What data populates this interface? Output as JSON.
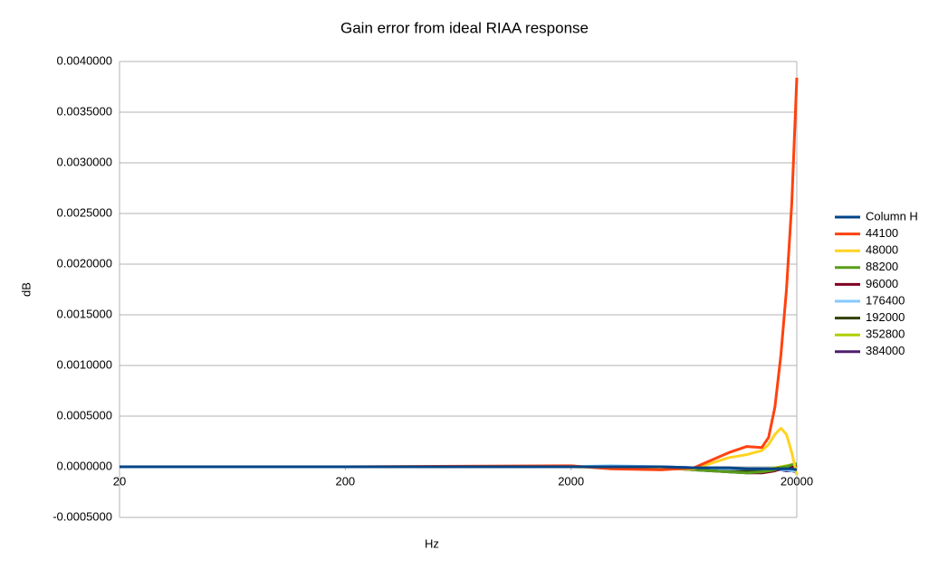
{
  "chart_data": {
    "type": "line",
    "title": "Gain error from ideal RIAA response",
    "x_label": "Hz",
    "y_label": "dB",
    "log_x": true,
    "grid": true,
    "legend": "right",
    "x": [
      20,
      200,
      2000,
      3000,
      5000,
      7000,
      10000,
      12000,
      14000,
      15000,
      16000,
      17000,
      18000,
      19000,
      20000
    ],
    "xlim": [
      20,
      20000
    ],
    "xticks": [
      20,
      200,
      2000,
      20000
    ],
    "ylim": [
      -0.0005,
      0.004
    ],
    "yticks": [
      {
        "value": -0.0005,
        "label": "-0.0005000"
      },
      {
        "value": 0,
        "label": "0.0000000"
      },
      {
        "value": 0.0005,
        "label": "0.0005000"
      },
      {
        "value": 0.001,
        "label": "0.0010000"
      },
      {
        "value": 0.0015,
        "label": "0.0015000"
      },
      {
        "value": 0.002,
        "label": "0.0020000"
      },
      {
        "value": 0.0025,
        "label": "0.0025000"
      },
      {
        "value": 0.003,
        "label": "0.0030000"
      },
      {
        "value": 0.0035,
        "label": "0.0035000"
      },
      {
        "value": 0.004,
        "label": "0.0040000"
      }
    ],
    "series": [
      {
        "name": "Column H",
        "color": "#004586",
        "values": [
          0,
          0,
          0,
          0,
          0,
          -1e-05,
          -1e-05,
          -2e-05,
          -2e-05,
          -2e-05,
          -2e-05,
          -2e-05,
          -2e-05,
          -2e-05,
          -3e-05
        ]
      },
      {
        "name": "44100",
        "color": "#ff420e",
        "values": [
          0,
          0,
          1e-05,
          -2e-05,
          -3e-05,
          -1e-05,
          0.00014,
          0.0002,
          0.00019,
          0.00029,
          0.00059,
          0.0011,
          0.00175,
          0.0026,
          0.00384
        ]
      },
      {
        "name": "48000",
        "color": "#ffd320",
        "values": [
          0,
          0,
          0,
          -1e-05,
          -2e-05,
          -2e-05,
          9e-05,
          0.00012,
          0.00016,
          0.00022,
          0.00032,
          0.00038,
          0.00032,
          0.00014,
          -8e-05
        ]
      },
      {
        "name": "88200",
        "color": "#579d1c",
        "values": [
          0,
          0,
          0,
          0,
          -1e-05,
          -3e-05,
          -5e-05,
          -6e-05,
          -5e-05,
          -4e-05,
          -3e-05,
          -1e-05,
          0,
          2e-05,
          3e-05
        ]
      },
      {
        "name": "96000",
        "color": "#7e0021",
        "values": [
          0,
          0,
          0,
          0,
          -1e-05,
          -3e-05,
          -5e-05,
          -6e-05,
          -6e-05,
          -5e-05,
          -4e-05,
          -2e-05,
          -1e-05,
          0,
          1e-05
        ]
      },
      {
        "name": "176400",
        "color": "#83caff",
        "values": [
          0,
          0,
          0,
          1e-05,
          0,
          -1e-05,
          -2e-05,
          -2e-05,
          -2e-05,
          -2e-05,
          -3e-05,
          -3e-05,
          -3e-05,
          -4e-05,
          -4e-05
        ]
      },
      {
        "name": "192000",
        "color": "#314004",
        "values": [
          0,
          0,
          0,
          0,
          -1e-05,
          -2e-05,
          -4e-05,
          -4e-05,
          -4e-05,
          -3e-05,
          -2e-05,
          -1e-05,
          0,
          0,
          1e-05
        ]
      },
      {
        "name": "352800",
        "color": "#aecf00",
        "values": [
          0,
          0,
          0,
          0,
          -1e-05,
          -2e-05,
          -3e-05,
          -3e-05,
          -3e-05,
          -2e-05,
          -1e-05,
          0,
          1e-05,
          2e-05,
          2e-05
        ]
      },
      {
        "name": "384000",
        "color": "#4b1f6f",
        "values": [
          0,
          0,
          0,
          0,
          0,
          -1e-05,
          -2e-05,
          -2e-05,
          -2e-05,
          -2e-05,
          -3e-05,
          -3e-05,
          -4e-05,
          -4e-05,
          -5e-05
        ]
      }
    ]
  }
}
